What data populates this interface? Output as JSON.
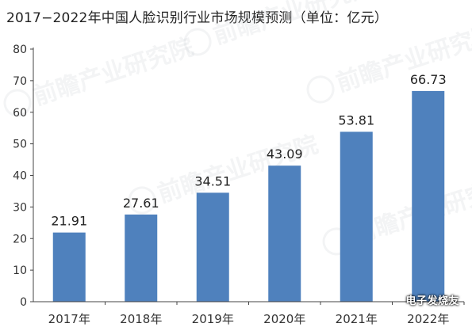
{
  "title": "2017−2022年中国人脸识别行业市场规模预测（单位：亿元）",
  "watermark": {
    "brand": "前瞻产业研究院",
    "footer": "电子发烧友"
  },
  "colors": {
    "bar": "#4f81bd",
    "axis": "#444444",
    "text": "#333333"
  },
  "chart_data": {
    "type": "bar",
    "title": "2017−2022年中国人脸识别行业市场规模预测（单位：亿元）",
    "categories": [
      "2017年",
      "2018年",
      "2019年",
      "2020年",
      "2021年",
      "2022年"
    ],
    "values": [
      21.91,
      27.61,
      34.51,
      43.09,
      53.81,
      66.73
    ],
    "data_labels": [
      "21.91",
      "27.61",
      "34.51",
      "43.09",
      "53.81",
      "66.73"
    ],
    "y_ticks": [
      "0",
      "10",
      "20",
      "30",
      "40",
      "50",
      "60",
      "70",
      "80"
    ],
    "ylim": [
      0,
      80
    ],
    "grid": false
  }
}
